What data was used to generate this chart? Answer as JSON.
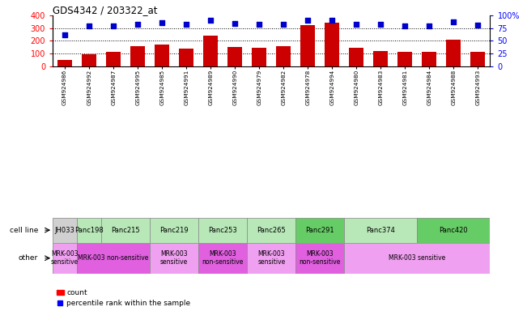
{
  "title": "GDS4342 / 203322_at",
  "samples": [
    "GSM924986",
    "GSM924992",
    "GSM924987",
    "GSM924995",
    "GSM924985",
    "GSM924991",
    "GSM924989",
    "GSM924990",
    "GSM924979",
    "GSM924982",
    "GSM924978",
    "GSM924994",
    "GSM924980",
    "GSM924983",
    "GSM924981",
    "GSM924984",
    "GSM924988",
    "GSM924993"
  ],
  "counts": [
    50,
    95,
    110,
    155,
    170,
    140,
    240,
    150,
    148,
    160,
    325,
    345,
    145,
    120,
    110,
    110,
    210,
    110
  ],
  "percentiles_left_axis": [
    250,
    320,
    320,
    330,
    345,
    330,
    360,
    337,
    330,
    330,
    360,
    365,
    330,
    330,
    315,
    315,
    348,
    322
  ],
  "cell_lines": [
    {
      "name": "JH033",
      "start": 0,
      "end": 1,
      "color": "#d0d0d0"
    },
    {
      "name": "Panc198",
      "start": 1,
      "end": 2,
      "color": "#b8e8b8"
    },
    {
      "name": "Panc215",
      "start": 2,
      "end": 4,
      "color": "#b8e8b8"
    },
    {
      "name": "Panc219",
      "start": 4,
      "end": 6,
      "color": "#b8e8b8"
    },
    {
      "name": "Panc253",
      "start": 6,
      "end": 8,
      "color": "#b8e8b8"
    },
    {
      "name": "Panc265",
      "start": 8,
      "end": 10,
      "color": "#b8e8b8"
    },
    {
      "name": "Panc291",
      "start": 10,
      "end": 12,
      "color": "#66cc66"
    },
    {
      "name": "Panc374",
      "start": 12,
      "end": 15,
      "color": "#b8e8b8"
    },
    {
      "name": "Panc420",
      "start": 15,
      "end": 18,
      "color": "#66cc66"
    }
  ],
  "other_groups": [
    {
      "label": "MRK-003\nsensitive",
      "start": 0,
      "end": 1,
      "color": "#f0a0f0"
    },
    {
      "label": "MRK-003 non-sensitive",
      "start": 1,
      "end": 4,
      "color": "#e060e0"
    },
    {
      "label": "MRK-003\nsensitive",
      "start": 4,
      "end": 6,
      "color": "#f0a0f0"
    },
    {
      "label": "MRK-003\nnon-sensitive",
      "start": 6,
      "end": 8,
      "color": "#e060e0"
    },
    {
      "label": "MRK-003\nsensitive",
      "start": 8,
      "end": 10,
      "color": "#f0a0f0"
    },
    {
      "label": "MRK-003\nnon-sensitive",
      "start": 10,
      "end": 12,
      "color": "#e060e0"
    },
    {
      "label": "MRK-003 sensitive",
      "start": 12,
      "end": 18,
      "color": "#f0a0f0"
    }
  ],
  "bar_color": "#cc0000",
  "dot_color": "#0000cc",
  "ylim_left": [
    0,
    400
  ],
  "ylim_right": [
    0,
    100
  ],
  "yticks_left": [
    0,
    100,
    200,
    300,
    400
  ],
  "yticks_right": [
    0,
    25,
    50,
    75,
    100
  ],
  "hlines": [
    100,
    200,
    300
  ],
  "background_color": "#ffffff"
}
